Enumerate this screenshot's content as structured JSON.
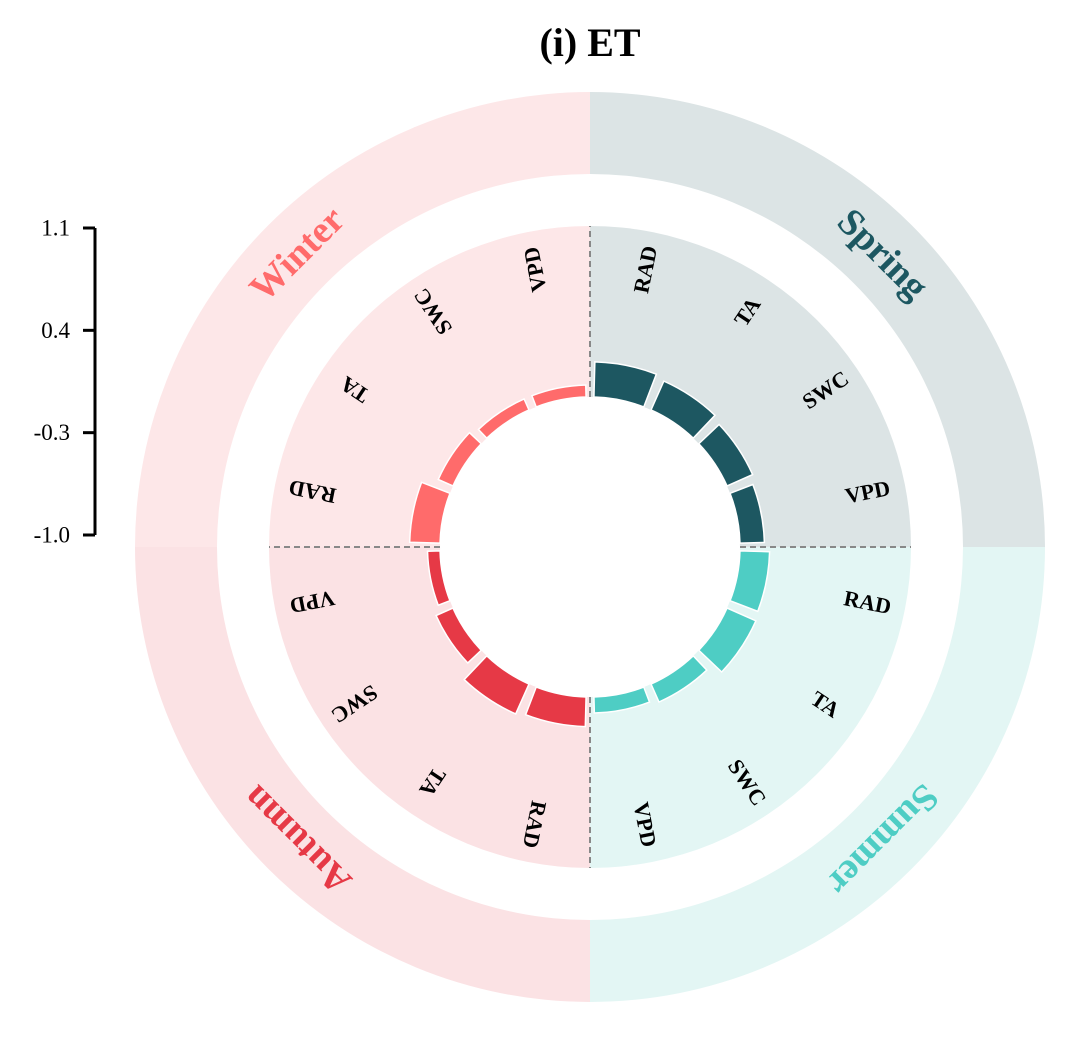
{
  "chart_data": {
    "type": "radial-bar",
    "title": "(i) ET",
    "scale": {
      "ticks": [
        "1.1",
        "0.4",
        "-0.3",
        "-1.0"
      ],
      "min": -1.0,
      "max": 1.1
    },
    "variables": [
      "RAD",
      "TA",
      "SWC",
      "VPD"
    ],
    "seasons": [
      {
        "name": "Spring",
        "color": "#1d5761",
        "bg": "#dce4e5",
        "values": [
          0.35,
          0.2,
          0.05,
          -0.1
        ]
      },
      {
        "name": "Summer",
        "color": "#4ecdc4",
        "bg": "#e3f6f4",
        "values": [
          0.12,
          0.2,
          -0.3,
          -0.45
        ]
      },
      {
        "name": "Autumn",
        "color": "#e63946",
        "bg": "#fbe2e4",
        "values": [
          0.12,
          0.25,
          -0.35,
          -0.6
        ]
      },
      {
        "name": "Winter",
        "color": "#ff6b6b",
        "bg": "#fde7e8",
        "values": [
          0.15,
          -0.45,
          -0.62,
          -0.62
        ]
      }
    ]
  }
}
